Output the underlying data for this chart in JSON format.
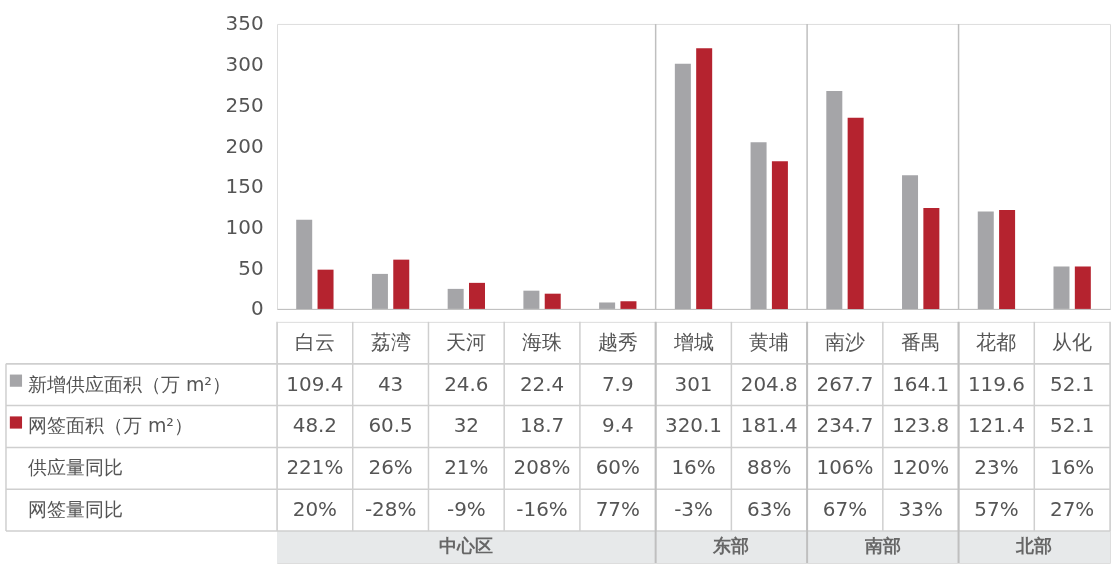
{
  "chart_data": {
    "type": "bar",
    "categories": [
      "白云",
      "荔湾",
      "天河",
      "海珠",
      "越秀",
      "增城",
      "黄埔",
      "南沙",
      "番禺",
      "花都",
      "从化"
    ],
    "series": [
      {
        "name": "新增供应面积（万 m²）",
        "color": "#a5a5a8",
        "values": [
          109.4,
          43,
          24.6,
          22.4,
          7.9,
          301,
          204.8,
          267.7,
          164.1,
          119.6,
          52.1
        ]
      },
      {
        "name": "网签面积（万 m²）",
        "color": "#b5232f",
        "values": [
          48.2,
          60.5,
          32,
          18.7,
          9.4,
          320.1,
          181.4,
          234.7,
          123.8,
          121.4,
          52.1
        ]
      }
    ],
    "ylim": [
      0,
      350
    ],
    "yticks": [
      0,
      50,
      100,
      150,
      200,
      250,
      300,
      350
    ],
    "data_labels": true,
    "legend": "bottom left",
    "grid": false,
    "annotations": [
      "供应量同比",
      "221%",
      "26%",
      "21%",
      "208%",
      "60%",
      "16%",
      "88%",
      "106%",
      "120%",
      "23%",
      "16%",
      "网签量同比",
      "20%",
      "-28%",
      "-9%",
      "-16%",
      "77%",
      "-3%",
      "63%",
      "67%",
      "33%",
      "57%",
      "27%",
      "中心区",
      "东部",
      "南部",
      "北部"
    ]
  }
}
